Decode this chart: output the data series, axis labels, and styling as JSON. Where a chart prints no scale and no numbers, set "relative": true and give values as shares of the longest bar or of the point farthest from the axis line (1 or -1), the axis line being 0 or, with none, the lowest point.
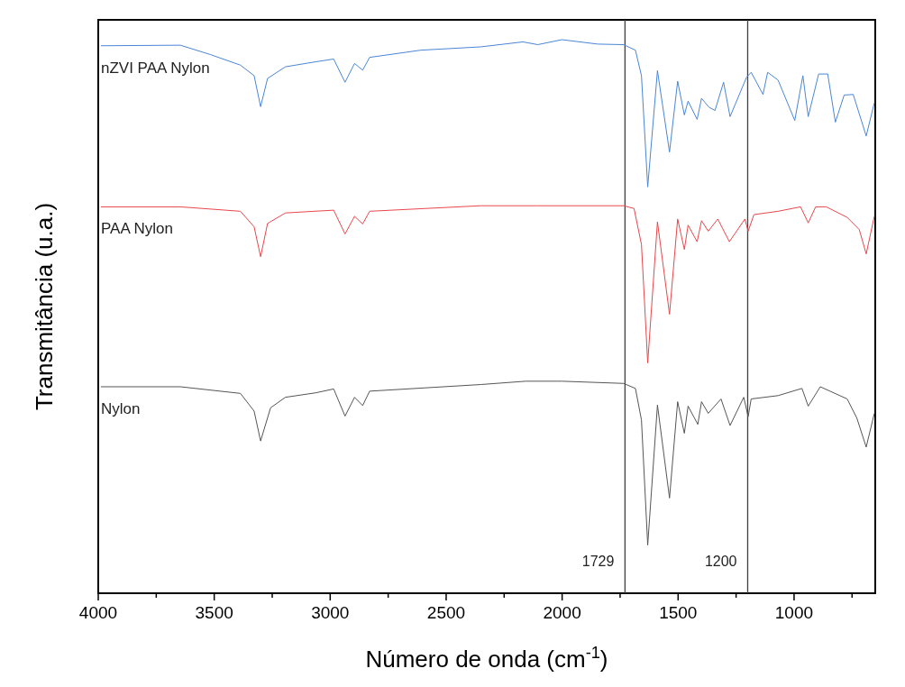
{
  "chart_data": {
    "type": "line",
    "relative": true,
    "xlabel": "Número de onda (cm$^{-1}$)",
    "ylabel": "Transmitância (u.a.)",
    "xlim": [
      4000,
      650
    ],
    "xticks": [
      4000,
      {
        "value": 3750,
        "label": null
      },
      3500,
      {
        "value": 3250,
        "label": null
      },
      3000,
      {
        "value": 2750,
        "label": null
      },
      2500,
      {
        "value": 2250,
        "label": null
      },
      2000,
      {
        "value": 1750,
        "label": null
      },
      1500,
      {
        "value": 1250,
        "label": null
      },
      1000,
      {
        "value": 750,
        "label": null
      }
    ],
    "grid": false,
    "marker": "none",
    "line_style": "solid",
    "ref_lines": [
      {
        "axis": "x",
        "value": 1729,
        "label": "1729",
        "color": "#404040"
      },
      {
        "axis": "x",
        "value": 1200,
        "label": "1200",
        "color": "#404040"
      }
    ],
    "series": [
      {
        "name": "nZVI PAA Nylon",
        "color": "#4a86d8",
        "x": [
          3989,
          3646,
          3516,
          3387,
          3328,
          3300,
          3270,
          3193,
          3063,
          2985,
          2936,
          2895,
          2860,
          2830,
          2610,
          2351,
          2169,
          2105,
          2001,
          1846,
          1735,
          1684,
          1658,
          1631,
          1589,
          1537,
          1502,
          1473,
          1457,
          1418,
          1399,
          1367,
          1341,
          1304,
          1276,
          1205,
          1185,
          1134,
          1114,
          1069,
          997,
          962,
          939,
          894,
          855,
          822,
          784,
          745,
          689,
          654
        ],
        "values": [
          0.989,
          0.99,
          0.973,
          0.954,
          0.935,
          0.879,
          0.93,
          0.951,
          0.96,
          0.965,
          0.923,
          0.957,
          0.945,
          0.968,
          0.981,
          0.987,
          0.996,
          0.991,
          1,
          0.992,
          0.991,
          0.981,
          0.935,
          0.734,
          0.944,
          0.797,
          0.925,
          0.864,
          0.889,
          0.856,
          0.894,
          0.878,
          0.872,
          0.923,
          0.861,
          0.932,
          0.941,
          0.901,
          0.941,
          0.927,
          0.854,
          0.935,
          0.861,
          0.938,
          0.938,
          0.851,
          0.9,
          0.901,
          0.826,
          0.886
        ]
      },
      {
        "name": "PAA Nylon",
        "color": "#e8474c",
        "x": [
          3989,
          3646,
          3387,
          3328,
          3300,
          3270,
          3193,
          2985,
          2936,
          2895,
          2860,
          2830,
          2351,
          2105,
          1735,
          1690,
          1658,
          1631,
          1589,
          1537,
          1502,
          1473,
          1457,
          1418,
          1399,
          1370,
          1329,
          1279,
          1212,
          1198,
          1173,
          1069,
          972,
          939,
          907,
          861,
          771,
          719,
          689,
          654
        ],
        "values": [
          0.698,
          0.698,
          0.69,
          0.662,
          0.608,
          0.668,
          0.687,
          0.692,
          0.649,
          0.681,
          0.667,
          0.69,
          0.7,
          0.7,
          0.7,
          0.695,
          0.63,
          0.416,
          0.671,
          0.504,
          0.676,
          0.621,
          0.665,
          0.635,
          0.673,
          0.654,
          0.676,
          0.635,
          0.676,
          0.654,
          0.684,
          0.69,
          0.698,
          0.669,
          0.698,
          0.698,
          0.679,
          0.657,
          0.613,
          0.681
        ]
      },
      {
        "name": "Nylon",
        "color": "#555555",
        "x": [
          3989,
          3646,
          3387,
          3328,
          3300,
          3257,
          3193,
          3063,
          2985,
          2936,
          2895,
          2860,
          2830,
          2351,
          2157,
          2001,
          1735,
          1684,
          1658,
          1631,
          1589,
          1537,
          1502,
          1473,
          1457,
          1415,
          1399,
          1370,
          1315,
          1276,
          1217,
          1198,
          1185,
          1069,
          966,
          939,
          887,
          771,
          729,
          689,
          654
        ],
        "values": [
          0.373,
          0.373,
          0.361,
          0.329,
          0.275,
          0.335,
          0.354,
          0.362,
          0.369,
          0.32,
          0.354,
          0.339,
          0.365,
          0.377,
          0.383,
          0.383,
          0.379,
          0.37,
          0.313,
          0.087,
          0.34,
          0.172,
          0.346,
          0.289,
          0.338,
          0.305,
          0.346,
          0.325,
          0.351,
          0.303,
          0.354,
          0.319,
          0.351,
          0.357,
          0.37,
          0.338,
          0.373,
          0.351,
          0.316,
          0.264,
          0.325
        ]
      }
    ]
  }
}
